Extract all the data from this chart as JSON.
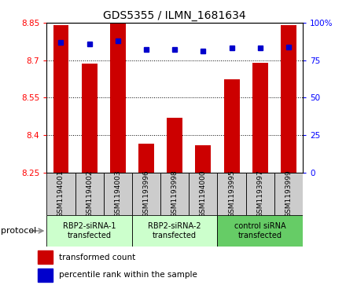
{
  "title": "GDS5355 / ILMN_1681634",
  "samples": [
    "GSM1194001",
    "GSM1194002",
    "GSM1194003",
    "GSM1193996",
    "GSM1193998",
    "GSM1194000",
    "GSM1193995",
    "GSM1193997",
    "GSM1193999"
  ],
  "transformed_counts": [
    8.84,
    8.685,
    8.855,
    8.365,
    8.47,
    8.36,
    8.625,
    8.69,
    8.84
  ],
  "percentile_ranks": [
    87,
    86,
    88,
    82,
    82,
    81,
    83,
    83,
    84
  ],
  "ylim_left": [
    8.25,
    8.85
  ],
  "ylim_right": [
    0,
    100
  ],
  "yticks_left": [
    8.25,
    8.4,
    8.55,
    8.7,
    8.85
  ],
  "yticks_right": [
    0,
    25,
    50,
    75,
    100
  ],
  "ytick_labels_left": [
    "8.25",
    "8.4",
    "8.55",
    "8.7",
    "8.85"
  ],
  "ytick_labels_right": [
    "0",
    "25",
    "50",
    "75",
    "100%"
  ],
  "bar_color": "#cc0000",
  "dot_color": "#0000cc",
  "bar_width": 0.55,
  "groups": [
    {
      "label": "RBP2-siRNA-1\ntransfected",
      "indices": [
        0,
        1,
        2
      ],
      "color": "#ccffcc"
    },
    {
      "label": "RBP2-siRNA-2\ntransfected",
      "indices": [
        3,
        4,
        5
      ],
      "color": "#ccffcc"
    },
    {
      "label": "control siRNA\ntransfected",
      "indices": [
        6,
        7,
        8
      ],
      "color": "#66cc66"
    }
  ],
  "protocol_label": "protocol",
  "legend_bar_label": "transformed count",
  "legend_dot_label": "percentile rank within the sample",
  "sample_row_color": "#cccccc"
}
